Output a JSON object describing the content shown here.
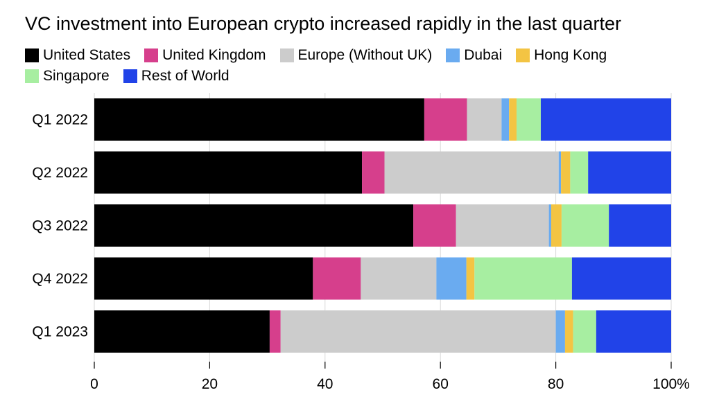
{
  "chart_data": {
    "type": "bar",
    "orientation": "horizontal",
    "stacked": true,
    "title": "VC investment into European crypto increased rapidly in the last quarter",
    "categories": [
      "Q1 2022",
      "Q2 2022",
      "Q3 2022",
      "Q4 2022",
      "Q1 2023"
    ],
    "series": [
      {
        "name": "United States",
        "color": "#000000",
        "values": [
          57.2,
          46.4,
          55.3,
          37.9,
          30.4
        ]
      },
      {
        "name": "United Kingdom",
        "color": "#d63f8c",
        "values": [
          7.4,
          3.9,
          7.4,
          8.3,
          1.9
        ]
      },
      {
        "name": "Europe (Without UK)",
        "color": "#cccccc",
        "values": [
          6.0,
          30.2,
          16.1,
          13.1,
          47.7
        ]
      },
      {
        "name": "Dubai",
        "color": "#6aabf0",
        "values": [
          1.3,
          0.4,
          0.4,
          5.2,
          1.6
        ]
      },
      {
        "name": "Hong Kong",
        "color": "#f3c443",
        "values": [
          1.3,
          1.6,
          1.8,
          1.4,
          1.4
        ]
      },
      {
        "name": "Singapore",
        "color": "#a7eea1",
        "values": [
          4.2,
          3.1,
          8.2,
          16.9,
          4.0
        ]
      },
      {
        "name": "Rest of World",
        "color": "#2143e8",
        "values": [
          22.6,
          14.4,
          10.8,
          17.2,
          13.0
        ]
      }
    ],
    "xlim": [
      0,
      100
    ],
    "xticks": [
      0,
      20,
      40,
      60,
      80,
      100
    ],
    "xtick_labels": [
      "0",
      "20",
      "40",
      "60",
      "80",
      "100%"
    ],
    "xlabel": "",
    "ylabel": "",
    "legend_position": "top-left",
    "grid": true
  }
}
